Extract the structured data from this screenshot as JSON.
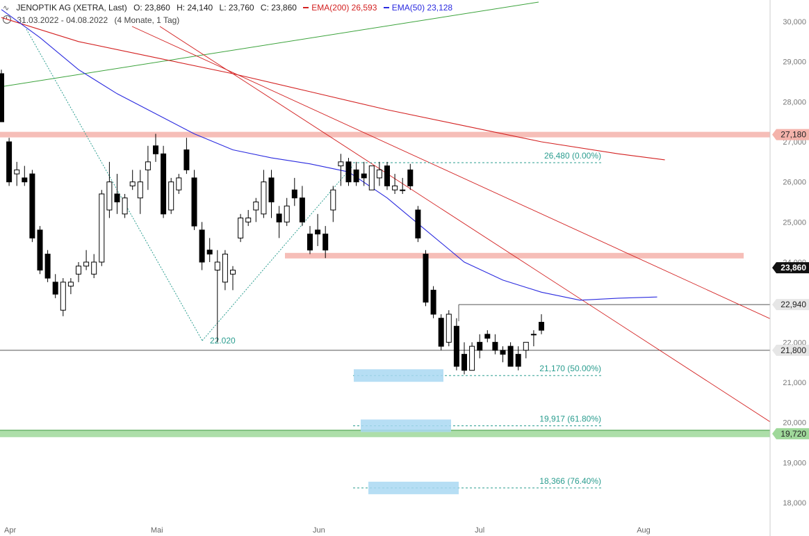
{
  "header": {
    "symbol": "JENOPTIK AG (XETRA, Last)",
    "open": "O: 23,860",
    "high": "H: 24,140",
    "low": "L: 23,760",
    "close": "C: 23,860",
    "ema200_label": "EMA(200)",
    "ema200_value": "26,593",
    "ema50_label": "EMA(50)",
    "ema50_value": "23,128",
    "date_range": "31.03.2022 - 04.08.2022",
    "period": "(4 Monate, 1 Tag)"
  },
  "colors": {
    "ema200": "#d32020",
    "ema50": "#2a2adf",
    "support_zone": "#f4b3ab",
    "green_zone": "#9fd89a",
    "fib_box": "#a9d8f2",
    "fib_text": "#2a9d8f",
    "arrow_blue": "#2222dd",
    "arrow_gray": "#555555"
  },
  "chart_data": {
    "type": "candlestick",
    "ylim": [
      17800,
      30350
    ],
    "y_ticks": [
      {
        "value": 18000,
        "label": "18,000"
      },
      {
        "value": 19000,
        "label": "19,000"
      },
      {
        "value": 20000,
        "label": "20,000"
      },
      {
        "value": 21000,
        "label": "21,000"
      },
      {
        "value": 22000,
        "label": "22,000"
      },
      {
        "value": 23000,
        "label": "23,000"
      },
      {
        "value": 24000,
        "label": "24,000"
      },
      {
        "value": 25000,
        "label": "25,000"
      },
      {
        "value": 26000,
        "label": "26,000"
      },
      {
        "value": 27000,
        "label": "27,000"
      },
      {
        "value": 28000,
        "label": "28,000"
      },
      {
        "value": 29000,
        "label": "29,000"
      },
      {
        "value": 30000,
        "label": "30,000"
      }
    ],
    "x_ticks": [
      {
        "index": 0,
        "label": "Apr"
      },
      {
        "index": 19,
        "label": "Mai"
      },
      {
        "index": 40,
        "label": "Jun"
      },
      {
        "index": 61,
        "label": "Jul"
      },
      {
        "index": 82,
        "label": "Aug"
      }
    ],
    "candles": [
      {
        "o": 28700,
        "h": 28800,
        "l": 27500,
        "c": 27500
      },
      {
        "o": 27000,
        "h": 27100,
        "l": 25900,
        "c": 26000
      },
      {
        "o": 26200,
        "h": 26500,
        "l": 25900,
        "c": 26300
      },
      {
        "o": 26100,
        "h": 26400,
        "l": 25900,
        "c": 26000
      },
      {
        "o": 26200,
        "h": 26300,
        "l": 24500,
        "c": 24600
      },
      {
        "o": 24800,
        "h": 24900,
        "l": 23700,
        "c": 23800
      },
      {
        "o": 24200,
        "h": 24300,
        "l": 23500,
        "c": 23600
      },
      {
        "o": 23500,
        "h": 23700,
        "l": 23100,
        "c": 23200
      },
      {
        "o": 22800,
        "h": 23600,
        "l": 22650,
        "c": 23500
      },
      {
        "o": 23400,
        "h": 23600,
        "l": 23200,
        "c": 23500
      },
      {
        "o": 23700,
        "h": 24000,
        "l": 23500,
        "c": 23900
      },
      {
        "o": 23900,
        "h": 24300,
        "l": 23800,
        "c": 24000
      },
      {
        "o": 23700,
        "h": 24200,
        "l": 23600,
        "c": 24000
      },
      {
        "o": 24000,
        "h": 25800,
        "l": 23900,
        "c": 25700
      },
      {
        "o": 25300,
        "h": 26500,
        "l": 25100,
        "c": 26000
      },
      {
        "o": 25700,
        "h": 26200,
        "l": 25200,
        "c": 25500
      },
      {
        "o": 25200,
        "h": 25700,
        "l": 25100,
        "c": 25600
      },
      {
        "o": 25900,
        "h": 26300,
        "l": 25800,
        "c": 26000
      },
      {
        "o": 25600,
        "h": 26300,
        "l": 25200,
        "c": 26000
      },
      {
        "o": 26300,
        "h": 26900,
        "l": 25800,
        "c": 26500
      },
      {
        "o": 26900,
        "h": 27200,
        "l": 26500,
        "c": 26700
      },
      {
        "o": 26700,
        "h": 26900,
        "l": 25100,
        "c": 25200
      },
      {
        "o": 25300,
        "h": 26100,
        "l": 25200,
        "c": 26000
      },
      {
        "o": 25800,
        "h": 26200,
        "l": 25700,
        "c": 26100
      },
      {
        "o": 26800,
        "h": 27100,
        "l": 26200,
        "c": 26300
      },
      {
        "o": 26100,
        "h": 26300,
        "l": 24800,
        "c": 24900
      },
      {
        "o": 24800,
        "h": 25000,
        "l": 23800,
        "c": 24000
      },
      {
        "o": 24300,
        "h": 24600,
        "l": 24000,
        "c": 24200
      },
      {
        "o": 23800,
        "h": 24300,
        "l": 22000,
        "c": 24000
      },
      {
        "o": 23500,
        "h": 24300,
        "l": 23300,
        "c": 24200
      },
      {
        "o": 23700,
        "h": 23900,
        "l": 23300,
        "c": 23800
      },
      {
        "o": 24600,
        "h": 25200,
        "l": 24500,
        "c": 25100
      },
      {
        "o": 25000,
        "h": 25300,
        "l": 24900,
        "c": 25100
      },
      {
        "o": 25300,
        "h": 25600,
        "l": 25000,
        "c": 25500
      },
      {
        "o": 25200,
        "h": 26300,
        "l": 25100,
        "c": 26000
      },
      {
        "o": 26100,
        "h": 26300,
        "l": 25100,
        "c": 25500
      },
      {
        "o": 25200,
        "h": 25400,
        "l": 24600,
        "c": 25000
      },
      {
        "o": 25000,
        "h": 25600,
        "l": 24900,
        "c": 25400
      },
      {
        "o": 25800,
        "h": 26100,
        "l": 25400,
        "c": 25600
      },
      {
        "o": 25600,
        "h": 25900,
        "l": 24900,
        "c": 25000
      },
      {
        "o": 24700,
        "h": 24900,
        "l": 24200,
        "c": 24300
      },
      {
        "o": 24800,
        "h": 25200,
        "l": 24400,
        "c": 24700
      },
      {
        "o": 24700,
        "h": 24900,
        "l": 24100,
        "c": 24300
      },
      {
        "o": 25300,
        "h": 25900,
        "l": 25000,
        "c": 25800
      },
      {
        "o": 26400,
        "h": 26700,
        "l": 25900,
        "c": 26500
      },
      {
        "o": 26500,
        "h": 26600,
        "l": 25900,
        "c": 26000
      },
      {
        "o": 26300,
        "h": 26500,
        "l": 25900,
        "c": 26000
      },
      {
        "o": 26200,
        "h": 26500,
        "l": 25900,
        "c": 26100
      },
      {
        "o": 25800,
        "h": 26400,
        "l": 25800,
        "c": 26400
      },
      {
        "o": 26100,
        "h": 26500,
        "l": 25900,
        "c": 26300
      },
      {
        "o": 26400,
        "h": 26500,
        "l": 25800,
        "c": 25900
      },
      {
        "o": 25800,
        "h": 26200,
        "l": 25700,
        "c": 25900
      },
      {
        "o": 25800,
        "h": 26100,
        "l": 25700,
        "c": 25800
      },
      {
        "o": 26300,
        "h": 26450,
        "l": 25800,
        "c": 25900
      },
      {
        "o": 25300,
        "h": 25400,
        "l": 24500,
        "c": 24600
      },
      {
        "o": 24200,
        "h": 24300,
        "l": 22900,
        "c": 23000
      },
      {
        "o": 23300,
        "h": 23400,
        "l": 22600,
        "c": 22700
      },
      {
        "o": 22600,
        "h": 22700,
        "l": 21800,
        "c": 21900
      },
      {
        "o": 22000,
        "h": 22800,
        "l": 21900,
        "c": 22700
      },
      {
        "o": 22400,
        "h": 22600,
        "l": 21300,
        "c": 21400
      },
      {
        "o": 21700,
        "h": 22000,
        "l": 21200,
        "c": 21300
      },
      {
        "o": 21300,
        "h": 22000,
        "l": 21300,
        "c": 21900
      },
      {
        "o": 22000,
        "h": 22200,
        "l": 21600,
        "c": 21800
      },
      {
        "o": 22200,
        "h": 22300,
        "l": 22000,
        "c": 22100
      },
      {
        "o": 22000,
        "h": 22200,
        "l": 21700,
        "c": 21800
      },
      {
        "o": 21800,
        "h": 21900,
        "l": 21500,
        "c": 21700
      },
      {
        "o": 21900,
        "h": 22000,
        "l": 21400,
        "c": 21400
      },
      {
        "o": 21700,
        "h": 21900,
        "l": 21300,
        "c": 21400
      },
      {
        "o": 21800,
        "h": 22000,
        "l": 21600,
        "c": 22000
      },
      {
        "o": 22200,
        "h": 22300,
        "l": 21900,
        "c": 22200
      },
      {
        "o": 22500,
        "h": 22700,
        "l": 22200,
        "c": 22300
      }
    ],
    "ema200": [
      {
        "i": 0,
        "v": 30100
      },
      {
        "i": 10,
        "v": 29500
      },
      {
        "i": 20,
        "v": 29100
      },
      {
        "i": 30,
        "v": 28700
      },
      {
        "i": 40,
        "v": 28250
      },
      {
        "i": 50,
        "v": 27800
      },
      {
        "i": 60,
        "v": 27400
      },
      {
        "i": 70,
        "v": 27000
      },
      {
        "i": 80,
        "v": 26700
      },
      {
        "i": 86,
        "v": 26550
      }
    ],
    "ema50": [
      {
        "i": 0,
        "v": 30300
      },
      {
        "i": 5,
        "v": 29600
      },
      {
        "i": 10,
        "v": 28800
      },
      {
        "i": 15,
        "v": 28200
      },
      {
        "i": 20,
        "v": 27700
      },
      {
        "i": 25,
        "v": 27200
      },
      {
        "i": 30,
        "v": 26800
      },
      {
        "i": 35,
        "v": 26600
      },
      {
        "i": 40,
        "v": 26450
      },
      {
        "i": 45,
        "v": 26250
      },
      {
        "i": 50,
        "v": 25600
      },
      {
        "i": 55,
        "v": 24800
      },
      {
        "i": 60,
        "v": 24000
      },
      {
        "i": 65,
        "v": 23550
      },
      {
        "i": 70,
        "v": 23250
      },
      {
        "i": 75,
        "v": 23050
      },
      {
        "i": 80,
        "v": 23100
      },
      {
        "i": 85,
        "v": 23130
      }
    ],
    "horizontal_lines": [
      {
        "value": 27180,
        "label": "27,180",
        "style": "zone"
      },
      {
        "value": 24160,
        "label": "",
        "style": "zone"
      },
      {
        "value": 23860,
        "label": "23,860",
        "style": "last"
      },
      {
        "value": 22940,
        "label": "22,940",
        "style": "line"
      },
      {
        "value": 21800,
        "label": "21,800",
        "style": "line"
      },
      {
        "value": 19720,
        "label": "19,720",
        "style": "green-zone"
      }
    ],
    "fibonacci": [
      {
        "value": 26480,
        "label": "26,480 (0.00%)"
      },
      {
        "value": 21170,
        "label": "21,170 (50.00%)"
      },
      {
        "value": 19917,
        "label": "19,917 (61.80%)"
      },
      {
        "value": 18366,
        "label": "18,366 (76.40%)"
      }
    ],
    "annotations": [
      {
        "text": "22.020"
      }
    ]
  }
}
